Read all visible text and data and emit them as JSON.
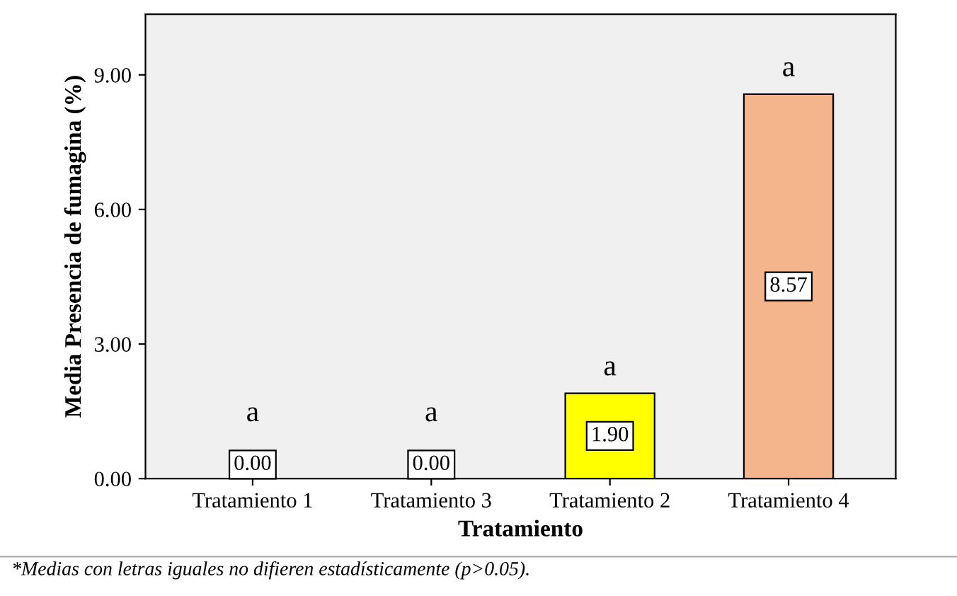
{
  "chart_data": {
    "type": "bar",
    "xlabel": "Tratamiento",
    "ylabel": "Media Presencia de fumagina (%)",
    "categories": [
      "Tratamiento 1",
      "Tratamiento 3",
      "Tratamiento 2",
      "Tratamiento 4"
    ],
    "values": [
      0.0,
      0.0,
      1.9,
      8.57
    ],
    "colors": [
      null,
      null,
      "#ffff00",
      "#f4b58c"
    ],
    "value_labels": [
      "0.00",
      "0.00",
      "1.90",
      "8.57"
    ],
    "ylim": [
      0,
      10.35
    ],
    "yticks": [
      {
        "value": 0,
        "label": "0.00"
      },
      {
        "value": 3,
        "label": "3.00"
      },
      {
        "value": 6,
        "label": "6.00"
      },
      {
        "value": 9,
        "label": "9.00"
      }
    ],
    "grid": false,
    "legend": false,
    "annotations": [
      {
        "text": "a",
        "x": "Tratamiento 1",
        "y": 0.0
      },
      {
        "text": "a",
        "x": "Tratamiento 3",
        "y": 0.0
      },
      {
        "text": "a",
        "x": "Tratamiento 2",
        "y": 1.9
      },
      {
        "text": "a",
        "x": "Tratamiento 4",
        "y": 8.57
      },
      "*Medias con letras iguales no difieren estadísticamente (p>0.05)."
    ]
  }
}
